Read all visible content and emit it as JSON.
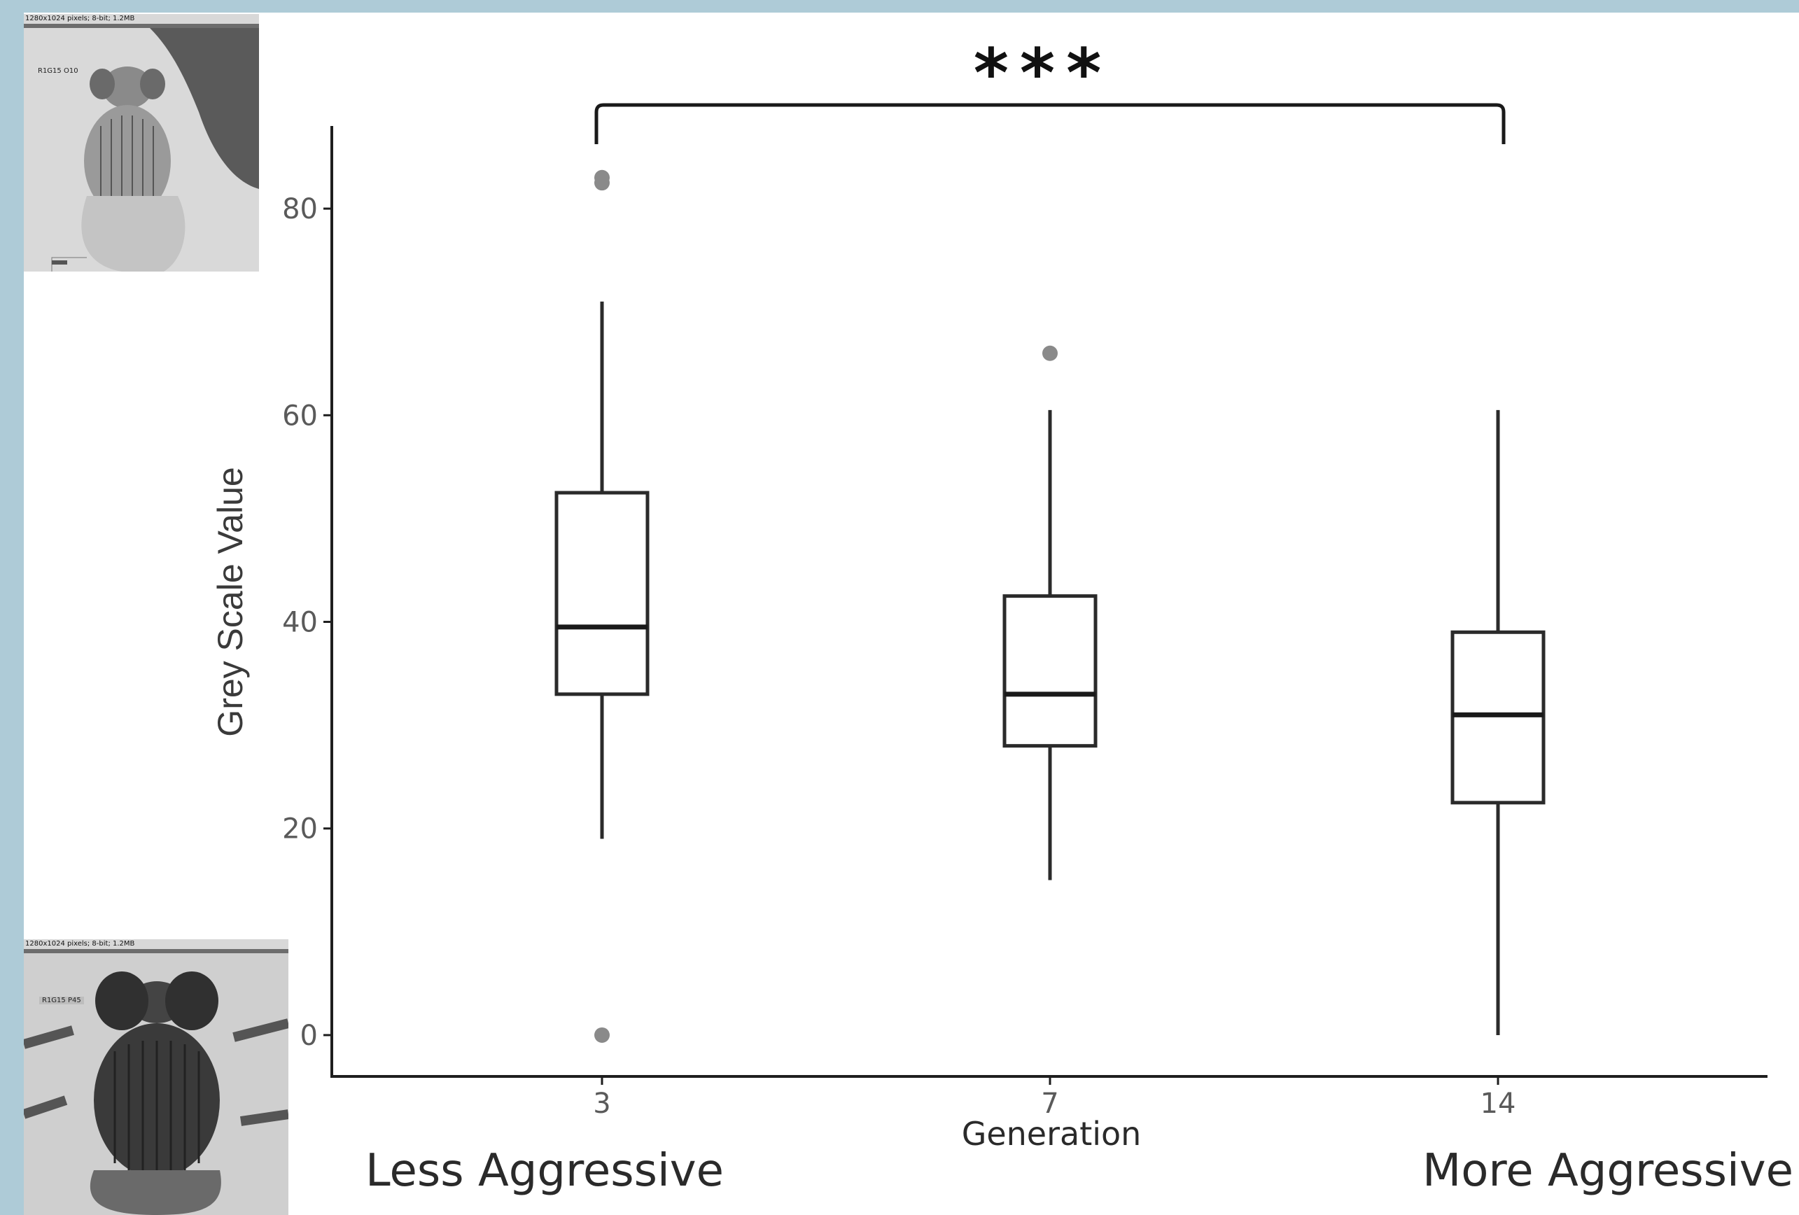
{
  "chart_data": {
    "type": "box",
    "ylabel": "Grey Scale Value",
    "xlabel": "Generation",
    "ylim": [
      -4,
      88
    ],
    "yticks": [
      0,
      20,
      40,
      60,
      80
    ],
    "y_tick_labels": [
      "0",
      "20",
      "40",
      "60",
      "80"
    ],
    "grid": false,
    "categories": [
      "3",
      "7",
      "14"
    ],
    "boxes": [
      {
        "category": "3",
        "min": 19,
        "q1": 33,
        "median": 39.5,
        "q3": 52.5,
        "max": 71,
        "outliers": [
          82.5,
          83,
          0
        ]
      },
      {
        "category": "7",
        "min": 15,
        "q1": 28,
        "median": 33,
        "q3": 42.5,
        "max": 60.5,
        "outliers": [
          66
        ]
      },
      {
        "category": "14",
        "min": 0,
        "q1": 22.5,
        "median": 31,
        "q3": 39,
        "max": 60.5,
        "outliers": []
      }
    ],
    "significance": {
      "from": "3",
      "to": "14",
      "label": "***"
    },
    "annotations": {
      "left": "Less Aggressive",
      "right": "More Aggressive"
    },
    "colors": {
      "axis": "#1e1e1e",
      "box": "#2a2a2a",
      "outlier": "#8a8a8a",
      "tick_text": "#5a5a5a"
    }
  },
  "insets": {
    "top": {
      "caption": "1280x1024 pixels; 8-bit; 1.2MB",
      "label": "R1G15 O10"
    },
    "bottom": {
      "caption": "1280x1024 pixels; 8-bit; 1.2MB",
      "label": "R1G15 P45"
    }
  }
}
